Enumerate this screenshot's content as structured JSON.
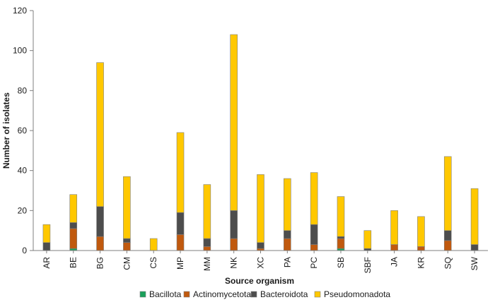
{
  "chart_data": {
    "type": "bar",
    "stacked": true,
    "title": "",
    "xlabel": "Source organism",
    "ylabel": "Number of isolates",
    "ylim": [
      0,
      120
    ],
    "yticks": [
      0,
      20,
      40,
      60,
      80,
      100,
      120
    ],
    "grid": false,
    "legend_position": "bottom",
    "categories": [
      "AR",
      "BE",
      "BG",
      "CM",
      "CS",
      "MP",
      "MM",
      "NK",
      "XC",
      "PA",
      "PC",
      "SB",
      "SBF",
      "JA",
      "KR",
      "SQ",
      "SW"
    ],
    "series": [
      {
        "name": "Bacillota",
        "color": "#1aa05a",
        "values": [
          0,
          1,
          0,
          0,
          0,
          0,
          0,
          0,
          0,
          0,
          0,
          1,
          0,
          0,
          0,
          0,
          0
        ]
      },
      {
        "name": "Actinomycetota",
        "color": "#c0590e",
        "values": [
          0,
          10,
          7,
          4,
          0,
          8,
          2,
          6,
          1,
          6,
          3,
          5,
          0,
          3,
          2,
          5,
          0
        ]
      },
      {
        "name": "Bacteroidota",
        "color": "#4d4d4d",
        "values": [
          4,
          3,
          15,
          2,
          0,
          11,
          4,
          14,
          3,
          4,
          10,
          1,
          1,
          0,
          0,
          5,
          3
        ]
      },
      {
        "name": "Pseudomonadota",
        "color": "#ffc800",
        "values": [
          9,
          14,
          72,
          31,
          6,
          40,
          27,
          88,
          34,
          26,
          26,
          20,
          9,
          17,
          15,
          37,
          28
        ]
      }
    ]
  }
}
